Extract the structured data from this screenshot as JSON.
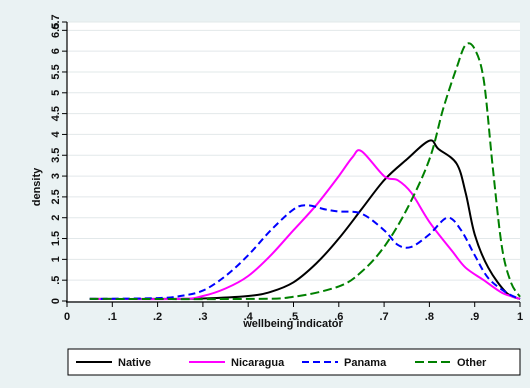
{
  "chart_data": {
    "type": "line",
    "xlabel": "wellbeing indicator",
    "ylabel": "density",
    "xlim": [
      0,
      1
    ],
    "ylim": [
      0,
      6.7
    ],
    "xticks": [
      {
        "v": 0,
        "label": "0"
      },
      {
        "v": 0.1,
        "label": ".1"
      },
      {
        "v": 0.2,
        "label": ".2"
      },
      {
        "v": 0.3,
        "label": ".3"
      },
      {
        "v": 0.4,
        "label": ".4"
      },
      {
        "v": 0.5,
        "label": ".5"
      },
      {
        "v": 0.6,
        "label": ".6"
      },
      {
        "v": 0.7,
        "label": ".7"
      },
      {
        "v": 0.8,
        "label": ".8"
      },
      {
        "v": 0.9,
        "label": ".9"
      },
      {
        "v": 1.0,
        "label": "1"
      }
    ],
    "yticks": [
      {
        "v": 0,
        "label": "0"
      },
      {
        "v": 0.5,
        "label": ".5"
      },
      {
        "v": 1,
        "label": "1"
      },
      {
        "v": 1.5,
        "label": "1.5"
      },
      {
        "v": 2,
        "label": "2"
      },
      {
        "v": 2.5,
        "label": "2.5"
      },
      {
        "v": 3,
        "label": "3"
      },
      {
        "v": 3.5,
        "label": "3.5"
      },
      {
        "v": 4,
        "label": "4"
      },
      {
        "v": 4.5,
        "label": "4.5"
      },
      {
        "v": 5,
        "label": "5"
      },
      {
        "v": 5.5,
        "label": "5.5"
      },
      {
        "v": 6,
        "label": "6"
      },
      {
        "v": 6.5,
        "label": "6.5"
      },
      {
        "v": 6.7,
        "label": "6.7"
      }
    ],
    "grid": true,
    "legend_position": "bottom",
    "series": [
      {
        "name": "Native",
        "color": "#000000",
        "dash": "solid",
        "points": [
          [
            0.05,
            0.05
          ],
          [
            0.2,
            0.05
          ],
          [
            0.3,
            0.06
          ],
          [
            0.4,
            0.12
          ],
          [
            0.45,
            0.22
          ],
          [
            0.5,
            0.45
          ],
          [
            0.55,
            0.9
          ],
          [
            0.6,
            1.5
          ],
          [
            0.65,
            2.2
          ],
          [
            0.7,
            2.9
          ],
          [
            0.75,
            3.4
          ],
          [
            0.8,
            3.85
          ],
          [
            0.82,
            3.65
          ],
          [
            0.86,
            3.3
          ],
          [
            0.88,
            2.6
          ],
          [
            0.9,
            1.6
          ],
          [
            0.93,
            0.8
          ],
          [
            0.97,
            0.2
          ],
          [
            1.0,
            0.05
          ]
        ]
      },
      {
        "name": "Nicaragua",
        "color": "#ff00ff",
        "dash": "solid",
        "points": [
          [
            0.05,
            0.05
          ],
          [
            0.25,
            0.05
          ],
          [
            0.3,
            0.12
          ],
          [
            0.35,
            0.3
          ],
          [
            0.4,
            0.6
          ],
          [
            0.45,
            1.1
          ],
          [
            0.5,
            1.7
          ],
          [
            0.55,
            2.3
          ],
          [
            0.6,
            3.0
          ],
          [
            0.63,
            3.45
          ],
          [
            0.65,
            3.6
          ],
          [
            0.7,
            3.0
          ],
          [
            0.73,
            2.9
          ],
          [
            0.76,
            2.6
          ],
          [
            0.8,
            1.9
          ],
          [
            0.85,
            1.2
          ],
          [
            0.88,
            0.8
          ],
          [
            0.92,
            0.5
          ],
          [
            0.96,
            0.2
          ],
          [
            1.0,
            0.05
          ]
        ]
      },
      {
        "name": "Panama",
        "color": "#0000ff",
        "dash": "dash",
        "points": [
          [
            0.05,
            0.05
          ],
          [
            0.2,
            0.07
          ],
          [
            0.25,
            0.12
          ],
          [
            0.3,
            0.25
          ],
          [
            0.35,
            0.6
          ],
          [
            0.4,
            1.1
          ],
          [
            0.45,
            1.7
          ],
          [
            0.5,
            2.2
          ],
          [
            0.53,
            2.3
          ],
          [
            0.57,
            2.2
          ],
          [
            0.6,
            2.15
          ],
          [
            0.65,
            2.1
          ],
          [
            0.7,
            1.7
          ],
          [
            0.73,
            1.35
          ],
          [
            0.76,
            1.3
          ],
          [
            0.8,
            1.6
          ],
          [
            0.84,
            2.0
          ],
          [
            0.87,
            1.7
          ],
          [
            0.9,
            1.1
          ],
          [
            0.93,
            0.55
          ],
          [
            0.97,
            0.2
          ],
          [
            1.0,
            0.05
          ]
        ]
      },
      {
        "name": "Other",
        "color": "#008000",
        "dash": "longdash",
        "points": [
          [
            0.05,
            0.05
          ],
          [
            0.4,
            0.05
          ],
          [
            0.5,
            0.1
          ],
          [
            0.6,
            0.35
          ],
          [
            0.65,
            0.7
          ],
          [
            0.7,
            1.3
          ],
          [
            0.75,
            2.2
          ],
          [
            0.8,
            3.4
          ],
          [
            0.83,
            4.6
          ],
          [
            0.86,
            5.6
          ],
          [
            0.88,
            6.15
          ],
          [
            0.9,
            6.05
          ],
          [
            0.92,
            5.3
          ],
          [
            0.94,
            3.2
          ],
          [
            0.96,
            1.3
          ],
          [
            0.98,
            0.45
          ],
          [
            1.0,
            0.1
          ]
        ]
      }
    ]
  }
}
